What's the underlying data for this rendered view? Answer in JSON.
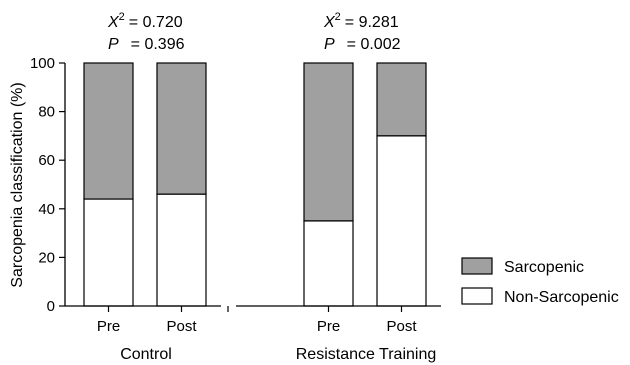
{
  "chart_data": {
    "type": "bar",
    "stacked": true,
    "ylabel": "Sarcopenia classification (%)",
    "ylim": [
      0,
      100
    ],
    "yticks": [
      0,
      20,
      40,
      60,
      80,
      100
    ],
    "groups": [
      {
        "name": "Control",
        "stat": {
          "chi_label": "X",
          "chi_sup": "2",
          "chi_value": "= 0.720",
          "p_label": "P",
          "p_value": "= 0.396"
        },
        "bars": [
          {
            "label": "Pre",
            "non_sarcopenic": 44,
            "sarcopenic": 56
          },
          {
            "label": "Post",
            "non_sarcopenic": 46,
            "sarcopenic": 54
          }
        ]
      },
      {
        "name": "Resistance Training",
        "stat": {
          "chi_label": "X",
          "chi_sup": "2",
          "chi_value": "= 9.281",
          "p_label": "P",
          "p_value": "= 0.002"
        },
        "bars": [
          {
            "label": "Pre",
            "non_sarcopenic": 35,
            "sarcopenic": 65
          },
          {
            "label": "Post",
            "non_sarcopenic": 70,
            "sarcopenic": 30
          }
        ]
      }
    ],
    "series": [
      {
        "name": "Sarcopenic",
        "color": "#a0a0a0"
      },
      {
        "name": "Non-Sarcopenic",
        "color": "#ffffff"
      }
    ],
    "legend_position": "right"
  }
}
